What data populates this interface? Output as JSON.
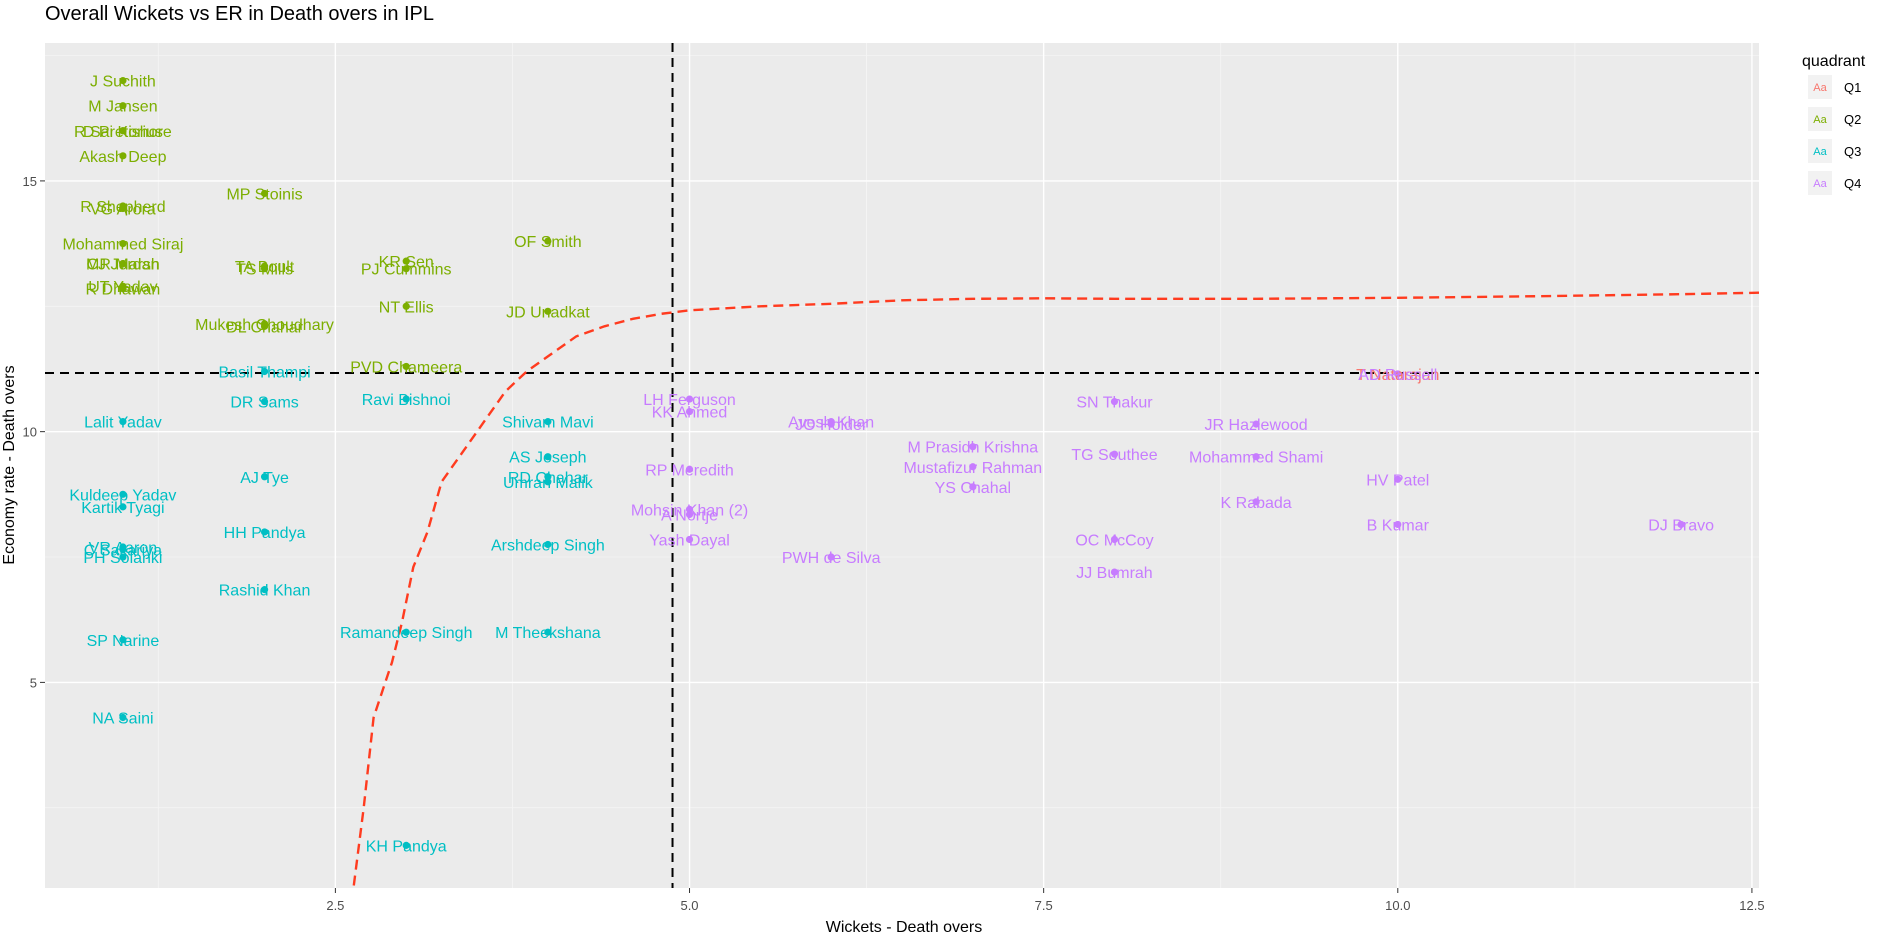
{
  "chart_data": {
    "type": "scatter",
    "title": "Overall Wickets vs ER in Death overs in IPL",
    "xlabel": "Wickets - Death overs",
    "ylabel": "Economy rate - Death overs",
    "xlim": [
      0.45,
      12.55
    ],
    "ylim": [
      0.9,
      17.75
    ],
    "x_ticks": [
      2.5,
      5.0,
      7.5,
      10.0,
      12.5
    ],
    "x_tick_labels": [
      "2.5",
      "5.0",
      "7.5",
      "10.0",
      "12.5"
    ],
    "y_ticks": [
      5,
      10,
      15
    ],
    "y_tick_labels": [
      "5",
      "10",
      "15"
    ],
    "grid": true,
    "legend": {
      "title": "quadrant",
      "position": "right",
      "key_glyph": "Aa",
      "entries": [
        {
          "name": "Q1",
          "color": "#F8766D"
        },
        {
          "name": "Q2",
          "color": "#7CAE00"
        },
        {
          "name": "Q3",
          "color": "#00BFC4"
        },
        {
          "name": "Q4",
          "color": "#C77CFF"
        }
      ]
    },
    "reference_lines": {
      "vline_x": 4.88,
      "hline_y": 11.17
    },
    "smooth_curve": {
      "color": "#FF3B1F",
      "x": [
        2.63,
        2.7,
        2.77,
        2.84,
        2.9,
        2.97,
        3.05,
        3.15,
        3.25,
        3.4,
        3.55,
        3.7,
        3.85,
        4.0,
        4.2,
        4.4,
        4.6,
        4.8,
        5.0,
        5.5,
        6.0,
        6.5,
        7.0,
        7.5,
        8.0,
        9.0,
        10.0,
        11.0,
        12.0,
        12.55
      ],
      "y": [
        0.95,
        2.5,
        4.3,
        4.9,
        5.4,
        6.2,
        7.3,
        8.0,
        9.0,
        9.6,
        10.2,
        10.8,
        11.2,
        11.5,
        11.9,
        12.1,
        12.25,
        12.35,
        12.42,
        12.5,
        12.55,
        12.62,
        12.65,
        12.66,
        12.65,
        12.65,
        12.67,
        12.7,
        12.74,
        12.77
      ]
    },
    "series": [
      {
        "name": "Q1",
        "color": "#F8766D",
        "points": [
          {
            "x": 10.0,
            "y": 11.15,
            "label": "T Natarajan"
          }
        ]
      },
      {
        "name": "Q2",
        "color": "#7CAE00",
        "points": [
          {
            "x": 1.0,
            "y": 17.0,
            "label": "J Suchith"
          },
          {
            "x": 1.0,
            "y": 16.5,
            "label": "M Jansen"
          },
          {
            "x": 1.0,
            "y": 16.0,
            "label": "R Sai Kishore"
          },
          {
            "x": 1.0,
            "y": 16.0,
            "label": "D Pretorius"
          },
          {
            "x": 1.0,
            "y": 15.5,
            "label": "Akash Deep"
          },
          {
            "x": 2.0,
            "y": 14.75,
            "label": "MP Stoinis"
          },
          {
            "x": 1.0,
            "y": 14.5,
            "label": "R Shepherd"
          },
          {
            "x": 1.0,
            "y": 14.45,
            "label": "VG Arora"
          },
          {
            "x": 4.0,
            "y": 13.8,
            "label": "OF Smith"
          },
          {
            "x": 1.0,
            "y": 13.75,
            "label": "Mohammed Siraj"
          },
          {
            "x": 1.0,
            "y": 13.35,
            "label": "CJ Jordan"
          },
          {
            "x": 1.0,
            "y": 13.35,
            "label": "MR Marsh"
          },
          {
            "x": 3.0,
            "y": 13.4,
            "label": "KR Sen"
          },
          {
            "x": 2.0,
            "y": 13.3,
            "label": "TA Boult"
          },
          {
            "x": 2.0,
            "y": 13.25,
            "label": "TS Mills"
          },
          {
            "x": 3.0,
            "y": 13.25,
            "label": "PJ Cummins"
          },
          {
            "x": 1.0,
            "y": 12.9,
            "label": "UT Yadav"
          },
          {
            "x": 1.0,
            "y": 12.85,
            "label": "R Dhawan"
          },
          {
            "x": 3.0,
            "y": 12.5,
            "label": "NT Ellis"
          },
          {
            "x": 4.0,
            "y": 12.4,
            "label": "JD Unadkat"
          },
          {
            "x": 2.0,
            "y": 12.15,
            "label": "Mukesh Choudhary"
          },
          {
            "x": 2.0,
            "y": 12.1,
            "label": "DL Chahar"
          },
          {
            "x": 3.0,
            "y": 11.3,
            "label": "PVD Chameera"
          }
        ]
      },
      {
        "name": "Q3",
        "color": "#00BFC4",
        "points": [
          {
            "x": 2.0,
            "y": 11.2,
            "label": "Basil Thampi"
          },
          {
            "x": 3.0,
            "y": 10.65,
            "label": "Ravi Bishnoi"
          },
          {
            "x": 2.0,
            "y": 10.6,
            "label": "DR Sams"
          },
          {
            "x": 1.0,
            "y": 10.2,
            "label": "Lalit Yadav"
          },
          {
            "x": 4.0,
            "y": 10.2,
            "label": "Shivam Mavi"
          },
          {
            "x": 4.0,
            "y": 9.5,
            "label": "AS Joseph"
          },
          {
            "x": 2.0,
            "y": 9.1,
            "label": "AJ Tye"
          },
          {
            "x": 4.0,
            "y": 9.1,
            "label": "RD Chahar"
          },
          {
            "x": 4.0,
            "y": 9.0,
            "label": "Umran Malik"
          },
          {
            "x": 1.0,
            "y": 8.75,
            "label": "Kuldeep Yadav"
          },
          {
            "x": 1.0,
            "y": 8.5,
            "label": "Kartik Tyagi"
          },
          {
            "x": 2.0,
            "y": 8.0,
            "label": "HH Pandya"
          },
          {
            "x": 4.0,
            "y": 7.75,
            "label": "Arshdeep Singh"
          },
          {
            "x": 1.0,
            "y": 7.7,
            "label": "VR Aaron"
          },
          {
            "x": 1.0,
            "y": 7.65,
            "label": "C Sakariya"
          },
          {
            "x": 1.0,
            "y": 7.5,
            "label": "PH Solanki"
          },
          {
            "x": 2.0,
            "y": 6.85,
            "label": "Rashid Khan"
          },
          {
            "x": 3.0,
            "y": 6.0,
            "label": "Ramandeep Singh"
          },
          {
            "x": 4.0,
            "y": 6.0,
            "label": "M Theekshana"
          },
          {
            "x": 1.0,
            "y": 5.85,
            "label": "SP Narine"
          },
          {
            "x": 1.0,
            "y": 4.3,
            "label": "NA Saini"
          },
          {
            "x": 3.0,
            "y": 1.75,
            "label": "KH Pandya"
          }
        ]
      },
      {
        "name": "Q4",
        "color": "#C77CFF",
        "points": [
          {
            "x": 10.0,
            "y": 11.15,
            "label": "AD Russell"
          },
          {
            "x": 5.0,
            "y": 10.65,
            "label": "LH Ferguson"
          },
          {
            "x": 8.0,
            "y": 10.6,
            "label": "SN Thakur"
          },
          {
            "x": 5.0,
            "y": 10.4,
            "label": "KK Ahmed"
          },
          {
            "x": 6.0,
            "y": 10.2,
            "label": "Avesh Khan"
          },
          {
            "x": 6.0,
            "y": 10.15,
            "label": "JO Holder"
          },
          {
            "x": 9.0,
            "y": 10.15,
            "label": "JR Hazlewood"
          },
          {
            "x": 7.0,
            "y": 9.7,
            "label": "M Prasidh Krishna"
          },
          {
            "x": 8.0,
            "y": 9.55,
            "label": "TG Southee"
          },
          {
            "x": 9.0,
            "y": 9.5,
            "label": "Mohammed Shami"
          },
          {
            "x": 7.0,
            "y": 9.3,
            "label": "Mustafizur Rahman"
          },
          {
            "x": 5.0,
            "y": 9.25,
            "label": "RP Meredith"
          },
          {
            "x": 10.0,
            "y": 9.05,
            "label": "HV Patel"
          },
          {
            "x": 7.0,
            "y": 8.9,
            "label": "YS Chahal"
          },
          {
            "x": 9.0,
            "y": 8.6,
            "label": "K Rabada"
          },
          {
            "x": 5.0,
            "y": 8.45,
            "label": "Mohsin Khan (2)"
          },
          {
            "x": 5.0,
            "y": 8.35,
            "label": "A Nortje"
          },
          {
            "x": 10.0,
            "y": 8.15,
            "label": "B Kumar"
          },
          {
            "x": 12.0,
            "y": 8.15,
            "label": "DJ Bravo"
          },
          {
            "x": 5.0,
            "y": 7.85,
            "label": "Yash Dayal"
          },
          {
            "x": 8.0,
            "y": 7.85,
            "label": "OC McCoy"
          },
          {
            "x": 6.0,
            "y": 7.5,
            "label": "PWH de Silva"
          },
          {
            "x": 8.0,
            "y": 7.2,
            "label": "JJ Bumrah"
          }
        ]
      }
    ]
  }
}
